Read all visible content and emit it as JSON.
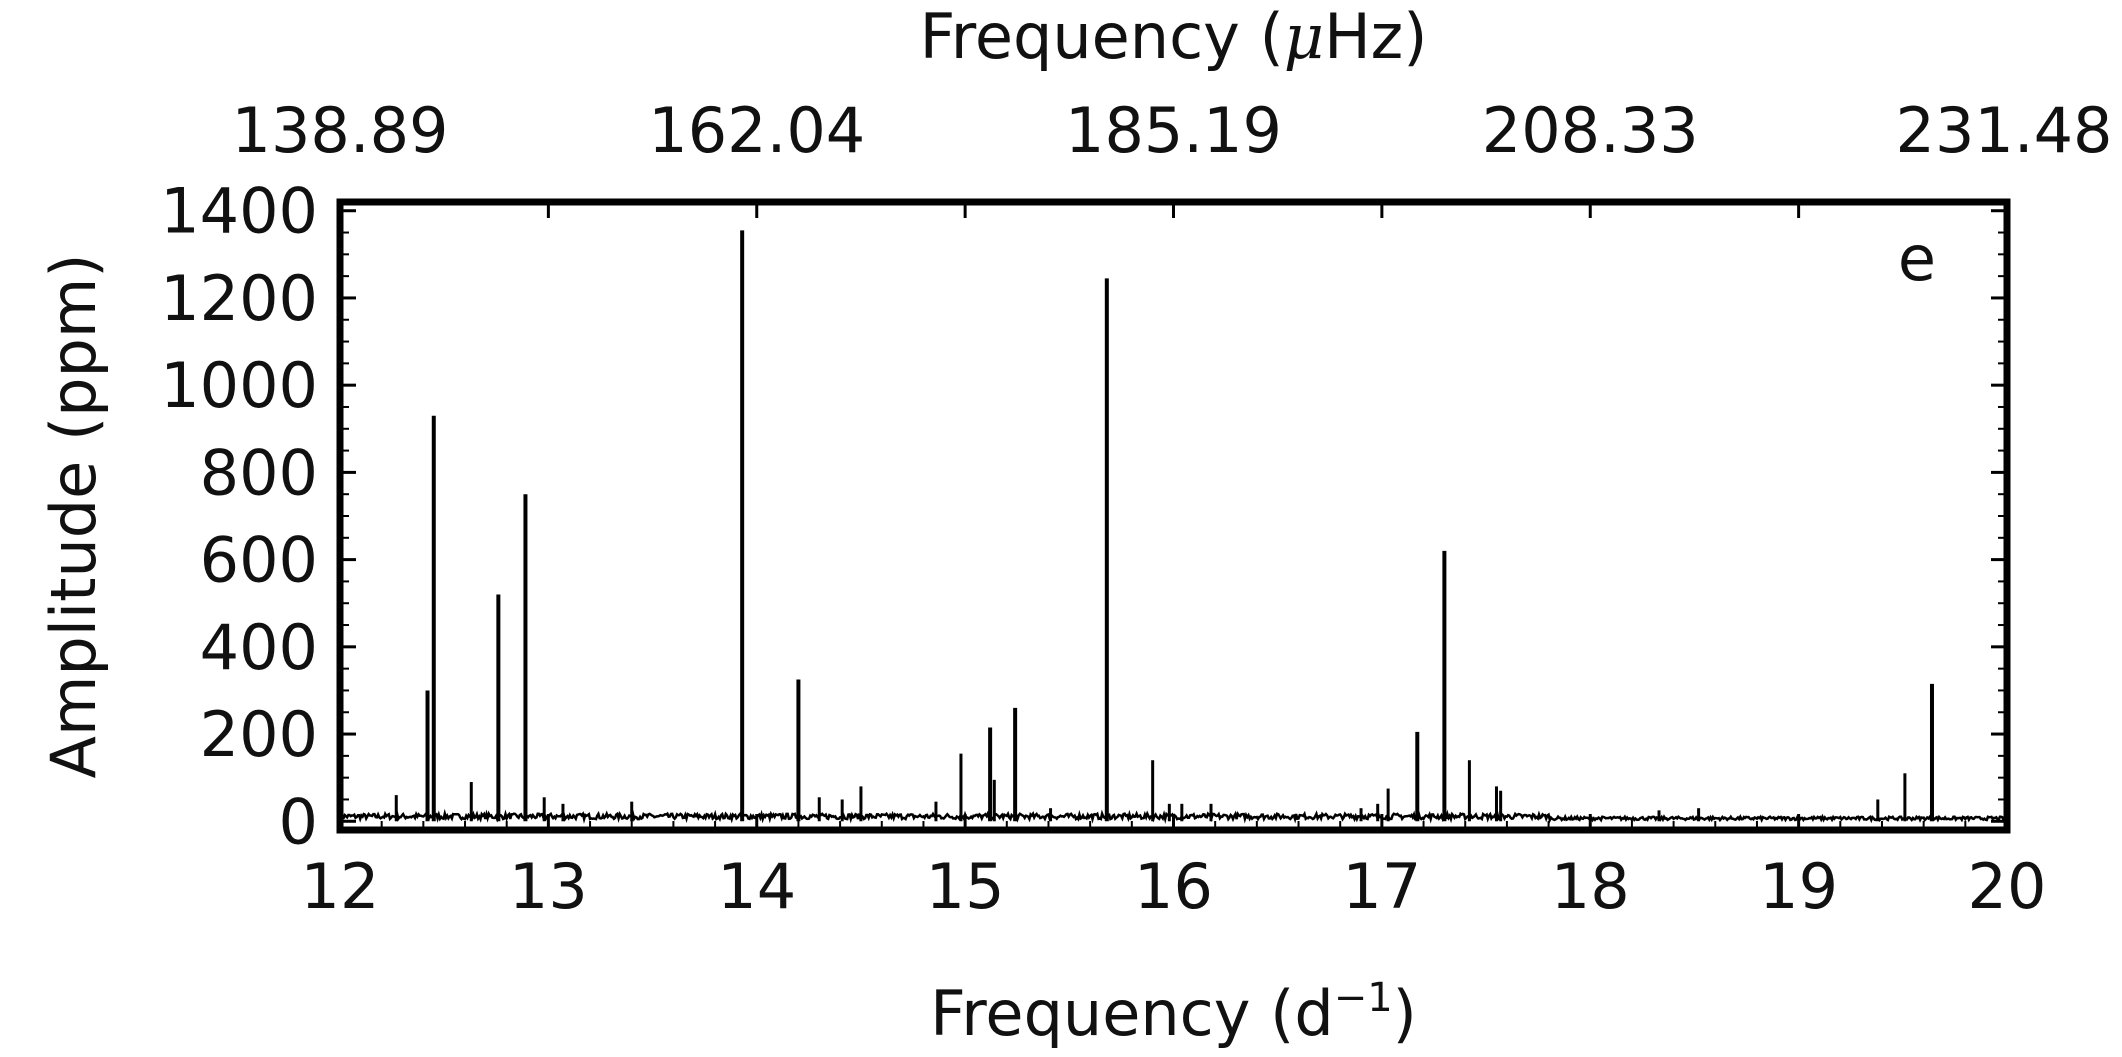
{
  "chart_data": {
    "type": "line",
    "panel_label": "e",
    "xlabel": {
      "main": "Frequency (d",
      "sup": "−1",
      "close": ")"
    },
    "xlabel_top": {
      "main": "Frequency (",
      "mu": "μ",
      "rest": "Hz)"
    },
    "ylabel": "Amplitude (ppm)",
    "xlim": [
      12,
      20
    ],
    "ylim": [
      -20,
      1420
    ],
    "x_ticks": [
      12,
      13,
      14,
      15,
      16,
      17,
      18,
      19,
      20
    ],
    "x_tick_labels": [
      "12",
      "13",
      "14",
      "15",
      "16",
      "17",
      "18",
      "19",
      "20"
    ],
    "y_ticks": [
      0,
      200,
      400,
      600,
      800,
      1000,
      1200,
      1400
    ],
    "y_tick_labels": [
      "0",
      "200",
      "400",
      "600",
      "800",
      "1000",
      "1200",
      "1400"
    ],
    "top_ticks": [
      12,
      14,
      16,
      18,
      20
    ],
    "top_tick_labels": [
      "138.89",
      "162.04",
      "185.19",
      "208.33",
      "231.48"
    ],
    "grid": false,
    "line_color": "#000000",
    "noise_level": 14,
    "peaks": [
      {
        "x": 12.27,
        "y": 60
      },
      {
        "x": 12.42,
        "y": 300
      },
      {
        "x": 12.45,
        "y": 930
      },
      {
        "x": 12.63,
        "y": 90
      },
      {
        "x": 12.76,
        "y": 520
      },
      {
        "x": 12.89,
        "y": 750
      },
      {
        "x": 12.98,
        "y": 55
      },
      {
        "x": 13.07,
        "y": 40
      },
      {
        "x": 13.4,
        "y": 45
      },
      {
        "x": 13.93,
        "y": 1355
      },
      {
        "x": 14.2,
        "y": 325
      },
      {
        "x": 14.3,
        "y": 55
      },
      {
        "x": 14.41,
        "y": 50
      },
      {
        "x": 14.5,
        "y": 80
      },
      {
        "x": 14.86,
        "y": 45
      },
      {
        "x": 14.98,
        "y": 155
      },
      {
        "x": 15.12,
        "y": 215
      },
      {
        "x": 15.14,
        "y": 95
      },
      {
        "x": 15.24,
        "y": 260
      },
      {
        "x": 15.41,
        "y": 30
      },
      {
        "x": 15.68,
        "y": 1245
      },
      {
        "x": 15.9,
        "y": 140
      },
      {
        "x": 15.98,
        "y": 40
      },
      {
        "x": 16.04,
        "y": 40
      },
      {
        "x": 16.18,
        "y": 40
      },
      {
        "x": 16.9,
        "y": 30
      },
      {
        "x": 16.98,
        "y": 40
      },
      {
        "x": 17.03,
        "y": 75
      },
      {
        "x": 17.17,
        "y": 205
      },
      {
        "x": 17.3,
        "y": 620
      },
      {
        "x": 17.42,
        "y": 140
      },
      {
        "x": 17.55,
        "y": 80
      },
      {
        "x": 17.57,
        "y": 70
      },
      {
        "x": 18.33,
        "y": 25
      },
      {
        "x": 18.52,
        "y": 30
      },
      {
        "x": 19.38,
        "y": 50
      },
      {
        "x": 19.51,
        "y": 110
      },
      {
        "x": 19.64,
        "y": 315
      }
    ]
  }
}
